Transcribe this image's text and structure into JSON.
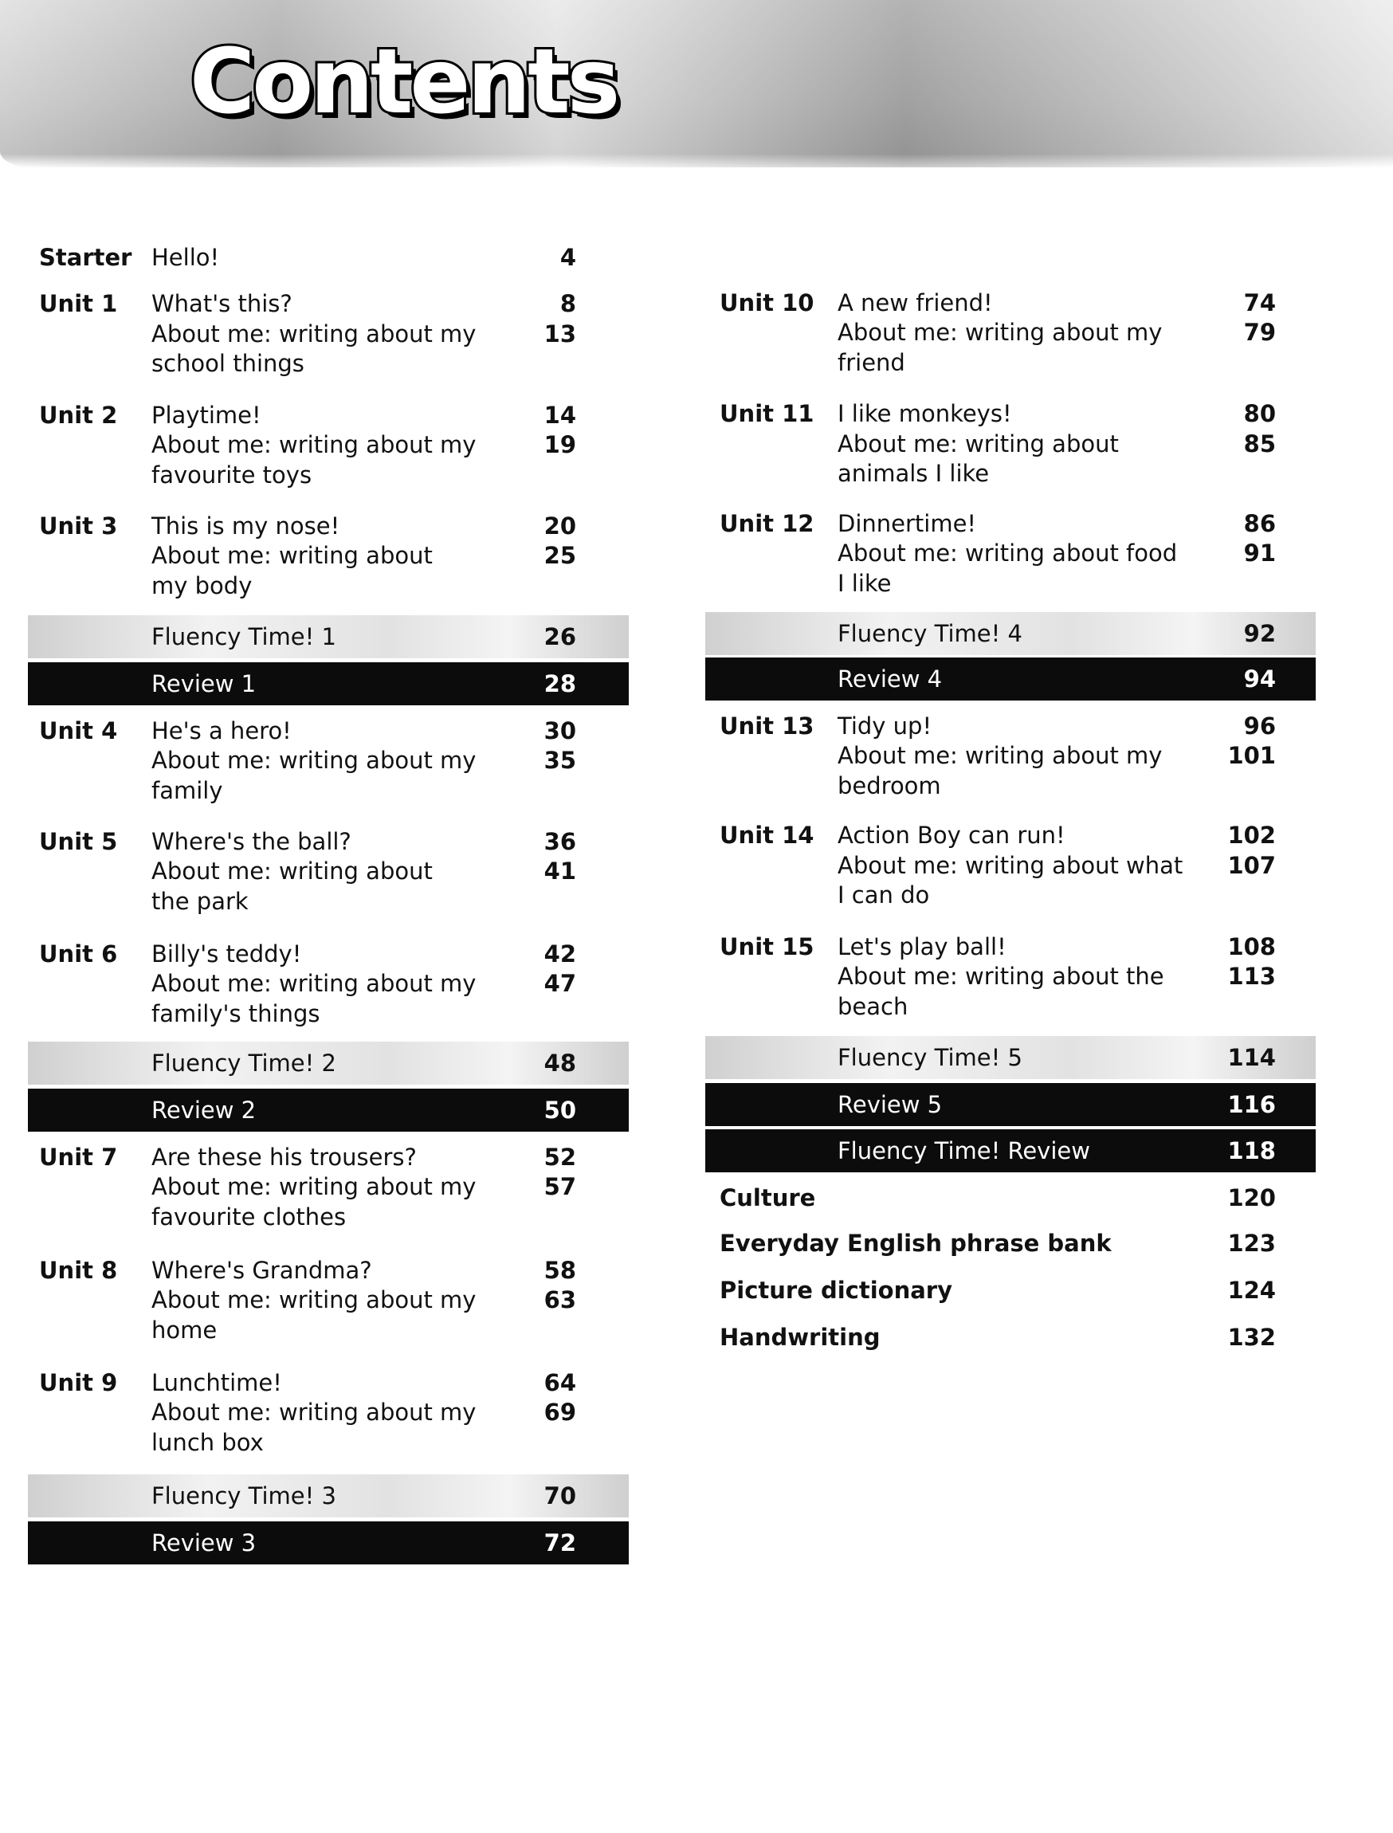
{
  "header": {
    "title": "Contents"
  },
  "left": [
    {
      "type": "unit",
      "label": "Starter",
      "lines": [
        "Hello!"
      ],
      "pages": [
        "4"
      ]
    },
    {
      "type": "unit",
      "label": "Unit 1",
      "lines": [
        "What's this?",
        "About me: writing about my",
        "school things"
      ],
      "pages": [
        "8",
        "13"
      ]
    },
    {
      "type": "unit",
      "label": "Unit 2",
      "lines": [
        "Playtime!",
        "About me: writing about my",
        "favourite toys"
      ],
      "pages": [
        "14",
        "19"
      ]
    },
    {
      "type": "unit",
      "label": "Unit 3",
      "lines": [
        "This is my nose!",
        "About me: writing about",
        "my body"
      ],
      "pages": [
        "20",
        "25"
      ]
    },
    {
      "type": "fluency",
      "title": "Fluency Time! 1",
      "page": "26"
    },
    {
      "type": "review",
      "title": "Review 1",
      "page": "28"
    },
    {
      "type": "unit",
      "label": "Unit 4",
      "lines": [
        "He's a hero!",
        "About me: writing about my",
        "family"
      ],
      "pages": [
        "30",
        "35"
      ]
    },
    {
      "type": "unit",
      "label": "Unit 5",
      "lines": [
        "Where's the ball?",
        "About me: writing about",
        "the park"
      ],
      "pages": [
        "36",
        "41"
      ]
    },
    {
      "type": "unit",
      "label": "Unit 6",
      "lines": [
        "Billy's teddy!",
        "About me: writing about my",
        "family's things"
      ],
      "pages": [
        "42",
        "47"
      ]
    },
    {
      "type": "fluency",
      "title": "Fluency Time! 2",
      "page": "48"
    },
    {
      "type": "review",
      "title": "Review 2",
      "page": "50"
    },
    {
      "type": "unit",
      "label": "Unit 7",
      "lines": [
        "Are these his trousers?",
        "About me: writing about my",
        "favourite clothes"
      ],
      "pages": [
        "52",
        "57"
      ]
    },
    {
      "type": "unit",
      "label": "Unit 8",
      "lines": [
        "Where's Grandma?",
        "About me: writing about my",
        "home"
      ],
      "pages": [
        "58",
        "63"
      ]
    },
    {
      "type": "unit",
      "label": "Unit 9",
      "lines": [
        "Lunchtime!",
        "About me: writing about my",
        "lunch box"
      ],
      "pages": [
        "64",
        "69"
      ]
    },
    {
      "type": "fluency",
      "title": "Fluency Time! 3",
      "page": "70"
    },
    {
      "type": "review",
      "title": "Review 3",
      "page": "72"
    }
  ],
  "right": [
    {
      "type": "unit",
      "label": "Unit 10",
      "lines": [
        "A new friend!",
        "About me: writing about my",
        "friend"
      ],
      "pages": [
        "74",
        "79"
      ]
    },
    {
      "type": "unit",
      "label": "Unit 11",
      "lines": [
        "I like monkeys!",
        "About me: writing about",
        "animals I like"
      ],
      "pages": [
        "80",
        "85"
      ]
    },
    {
      "type": "unit",
      "label": "Unit 12",
      "lines": [
        "Dinnertime!",
        "About me: writing about food",
        "I like"
      ],
      "pages": [
        "86",
        "91"
      ]
    },
    {
      "type": "fluency",
      "title": "Fluency Time! 4",
      "page": "92"
    },
    {
      "type": "review",
      "title": "Review 4",
      "page": "94"
    },
    {
      "type": "unit",
      "label": "Unit 13",
      "lines": [
        "Tidy up!",
        "About me: writing about my",
        "bedroom"
      ],
      "pages": [
        "96",
        "101"
      ]
    },
    {
      "type": "unit",
      "label": "Unit 14",
      "lines": [
        "Action Boy can run!",
        "About me: writing about what",
        "I can do"
      ],
      "pages": [
        "102",
        "107"
      ]
    },
    {
      "type": "unit",
      "label": "Unit 15",
      "lines": [
        "Let's play ball!",
        "About me: writing about the",
        "beach"
      ],
      "pages": [
        "108",
        "113"
      ]
    },
    {
      "type": "fluency",
      "title": "Fluency Time! 5",
      "page": "114"
    },
    {
      "type": "review",
      "title": "Review 5",
      "page": "116"
    },
    {
      "type": "review",
      "title": "Fluency Time! Review",
      "page": "118"
    },
    {
      "type": "extra",
      "title": "Culture",
      "page": "120"
    },
    {
      "type": "extra",
      "title": "Everyday English phrase bank",
      "page": "123"
    },
    {
      "type": "extra",
      "title": "Picture dictionary",
      "page": "124"
    },
    {
      "type": "extra",
      "title": "Handwriting",
      "page": "132"
    }
  ]
}
